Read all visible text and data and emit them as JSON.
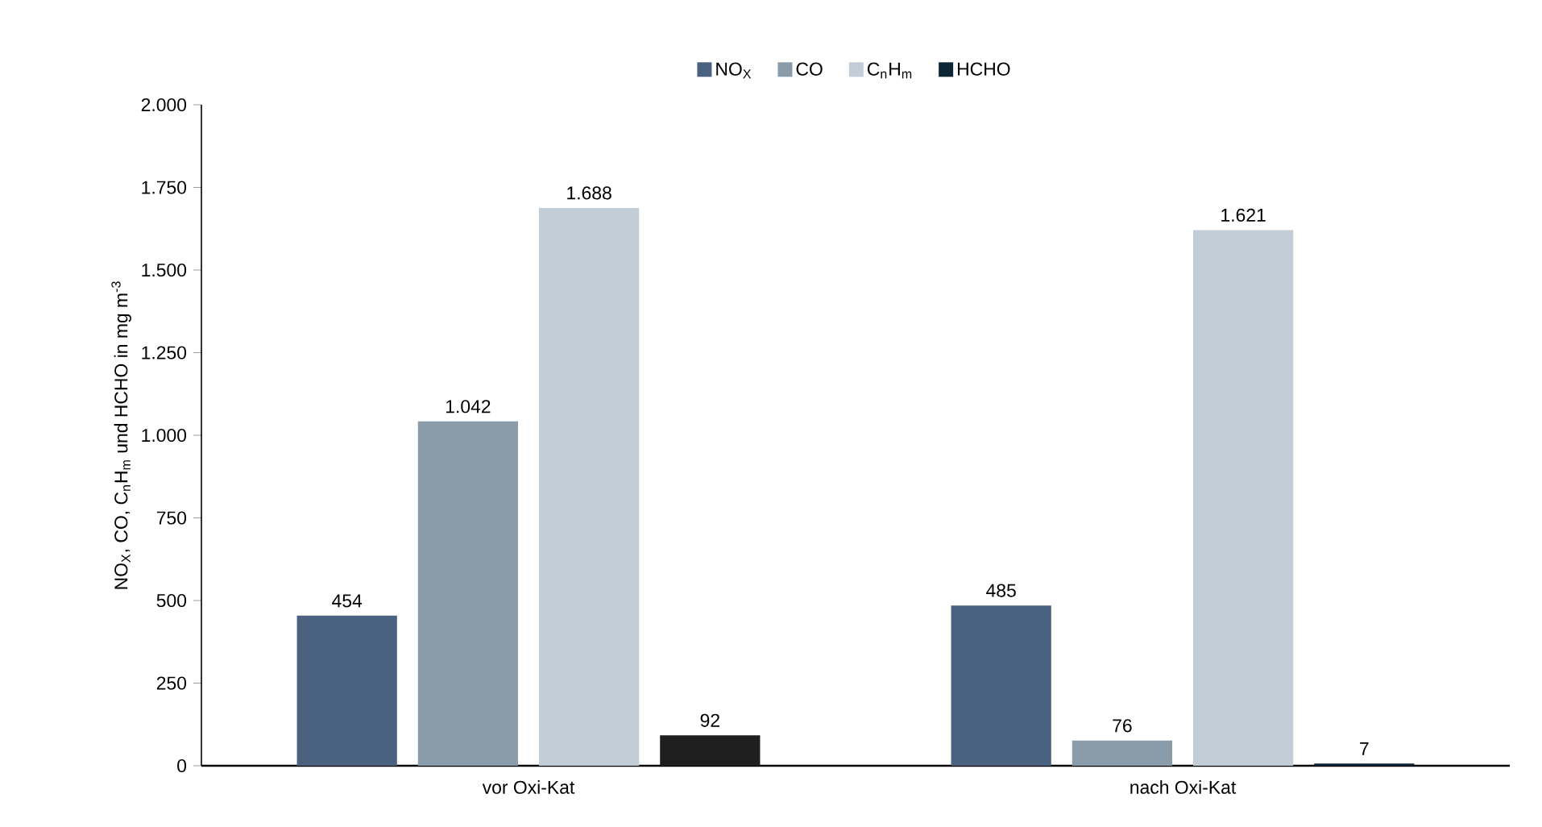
{
  "chart_data": {
    "type": "bar",
    "ylabel": "NO$_{X}$, CO, C$_{n}$H$_{m}$ und HCHO in mg m$^{-3}$",
    "categories": [
      "vor Oxi-Kat",
      "nach Oxi-Kat"
    ],
    "series": [
      {
        "name": "NO$_{X}$",
        "color": "#4a6280",
        "values": [
          454,
          485
        ],
        "value_labels": [
          "454",
          "485"
        ]
      },
      {
        "name": "CO",
        "color": "#8a9ba9",
        "values": [
          1042,
          76
        ],
        "value_labels": [
          "1.042",
          "76"
        ]
      },
      {
        "name": "C$_{n}$H$_{m}$",
        "color": "#c3cdd7",
        "values": [
          1688,
          1621
        ],
        "value_labels": [
          "1.688",
          "1.621"
        ]
      },
      {
        "name": "HCHO",
        "color": "#0d2535",
        "colors": [
          "#1f1f1f",
          "#0d2535"
        ],
        "values": [
          92,
          7
        ],
        "value_labels": [
          "92",
          "7"
        ]
      }
    ],
    "ylim": [
      0,
      2000
    ],
    "yticks": [
      {
        "value": 0,
        "label": "0"
      },
      {
        "value": 250,
        "label": "250"
      },
      {
        "value": 500,
        "label": "500"
      },
      {
        "value": 750,
        "label": "750"
      },
      {
        "value": 1000,
        "label": "1.000"
      },
      {
        "value": 1250,
        "label": "1.250"
      },
      {
        "value": 1500,
        "label": "1.500"
      },
      {
        "value": 1750,
        "label": "1.750"
      },
      {
        "value": 2000,
        "label": "2.000"
      }
    ],
    "grid": false,
    "legend": "top"
  }
}
